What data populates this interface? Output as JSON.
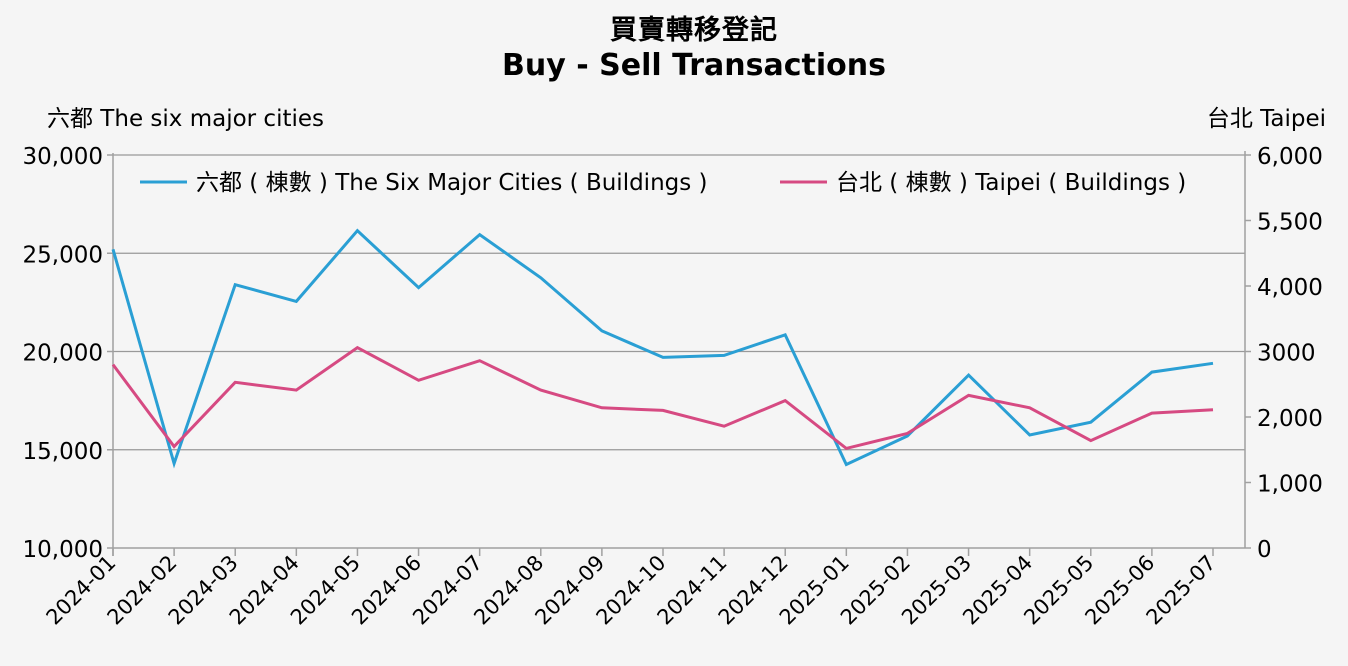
{
  "title": {
    "zh": "買賣轉移登記",
    "en": "Buy - Sell Transactions"
  },
  "axis_titles": {
    "left": "六都  The six major cities",
    "right": "台北 Taipei"
  },
  "colors": {
    "six_cities": "#2a9fd4",
    "taipei": "#d64a82",
    "grid": "#999999",
    "axis": "#a0a0a0",
    "background": "#f5f5f5"
  },
  "chart_data": {
    "type": "line",
    "title": "買賣轉移登記 Buy - Sell Transactions",
    "xlabel": "",
    "ylabel_left": "六都  The six major cities",
    "ylabel_right": "台北 Taipei",
    "x": [
      "2024-01",
      "2024-02",
      "2024-03",
      "2024-04",
      "2024-05",
      "2024-06",
      "2024-07",
      "2024-08",
      "2024-09",
      "2024-10",
      "2024-11",
      "2024-12",
      "2025-01",
      "2025-02",
      "2025-03",
      "2025-04",
      "2025-05",
      "2025-06",
      "2025-07"
    ],
    "left_axis": {
      "ylim": [
        10000,
        30000
      ],
      "ticks": [
        "30,000",
        "25,000",
        "20,000",
        "15,000",
        "10,000"
      ],
      "tick_values": [
        30000,
        25000,
        20000,
        15000,
        10000
      ]
    },
    "right_axis": {
      "ticks": [
        "6,000",
        "5,500",
        "4,000",
        "3000",
        "2,000",
        "1,000",
        "0"
      ],
      "tick_values": [
        6000,
        5500,
        4000,
        3000,
        2000,
        1000,
        0
      ]
    },
    "grid": true,
    "legend_position": "top inside",
    "series": [
      {
        "name": "六都 ( 棟數 ) The Six Major Cities ( Buildings )",
        "axis": "left",
        "color": "#2a9fd4",
        "values": [
          25200,
          14300,
          23400,
          22550,
          26150,
          23250,
          25950,
          23750,
          21050,
          19700,
          19800,
          20850,
          14250,
          15700,
          18800,
          15750,
          16400,
          18950,
          19400
        ]
      },
      {
        "name": "台北 ( 棟數 ) Taipei ( Buildings )",
        "axis": "right",
        "color": "#d64a82",
        "values": [
          2800,
          1550,
          2530,
          2410,
          3060,
          2560,
          2860,
          2410,
          2140,
          2100,
          1860,
          2250,
          1520,
          1750,
          2330,
          2140,
          1640,
          2060,
          2110
        ]
      }
    ]
  }
}
